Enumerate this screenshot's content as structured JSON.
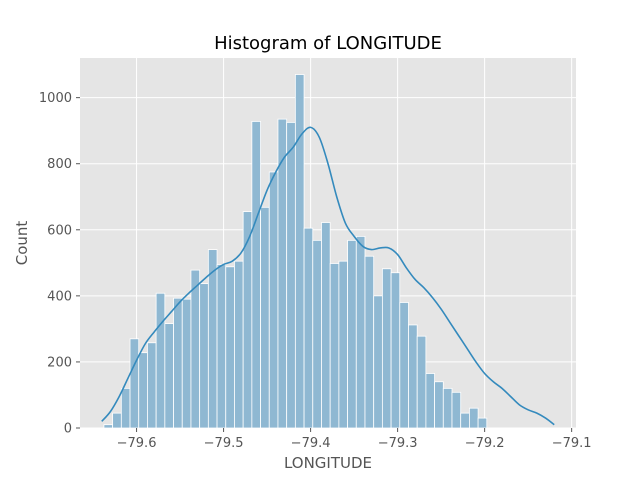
{
  "chart_data": {
    "type": "bar",
    "title": "Histogram of LONGITUDE",
    "xlabel": "LONGITUDE",
    "ylabel": "Count",
    "xlim": [
      -79.665,
      -79.095
    ],
    "ylim": [
      0,
      1120
    ],
    "xticks": [
      -79.6,
      -79.5,
      -79.4,
      -79.3,
      -79.2,
      -79.1
    ],
    "xtick_labels": [
      "−79.6",
      "−79.5",
      "−79.4",
      "−79.3",
      "−79.2",
      "−79.1"
    ],
    "yticks": [
      0,
      200,
      400,
      600,
      800,
      1000
    ],
    "ytick_labels": [
      "0",
      "200",
      "400",
      "600",
      "800",
      "1000"
    ],
    "grid": true,
    "bin_start": -79.6375,
    "bin_width": 0.01,
    "counts": [
      10,
      45,
      120,
      270,
      228,
      258,
      408,
      316,
      393,
      390,
      478,
      437,
      540,
      495,
      488,
      505,
      655,
      928,
      668,
      775,
      935,
      925,
      1070,
      605,
      568,
      622,
      498,
      505,
      568,
      580,
      520,
      400,
      482,
      470,
      380,
      312,
      278,
      165,
      140,
      120,
      108,
      45,
      60,
      30
    ],
    "kde": {
      "x": [
        -79.64,
        -79.63,
        -79.62,
        -79.61,
        -79.6,
        -79.59,
        -79.58,
        -79.57,
        -79.56,
        -79.55,
        -79.54,
        -79.53,
        -79.52,
        -79.51,
        -79.5,
        -79.49,
        -79.48,
        -79.47,
        -79.46,
        -79.45,
        -79.44,
        -79.43,
        -79.42,
        -79.41,
        -79.4,
        -79.39,
        -79.38,
        -79.37,
        -79.36,
        -79.35,
        -79.34,
        -79.33,
        -79.32,
        -79.31,
        -79.3,
        -79.29,
        -79.28,
        -79.27,
        -79.26,
        -79.25,
        -79.24,
        -79.23,
        -79.22,
        -79.21,
        -79.2,
        -79.19,
        -79.18,
        -79.17,
        -79.16,
        -79.15,
        -79.14,
        -79.13,
        -79.12
      ],
      "y": [
        20,
        50,
        95,
        150,
        205,
        255,
        290,
        322,
        352,
        382,
        408,
        432,
        456,
        478,
        495,
        505,
        530,
        580,
        650,
        720,
        775,
        820,
        850,
        890,
        910,
        880,
        800,
        700,
        620,
        580,
        550,
        540,
        545,
        545,
        525,
        485,
        450,
        425,
        395,
        360,
        320,
        280,
        240,
        200,
        165,
        140,
        120,
        95,
        70,
        55,
        45,
        30,
        10
      ]
    },
    "colors": {
      "bar_fill": "#8fb8d2",
      "bar_stroke": "#ffffff",
      "kde_line": "#348abd",
      "plot_bg": "#e5e5e5",
      "grid": "#ffffff"
    }
  }
}
